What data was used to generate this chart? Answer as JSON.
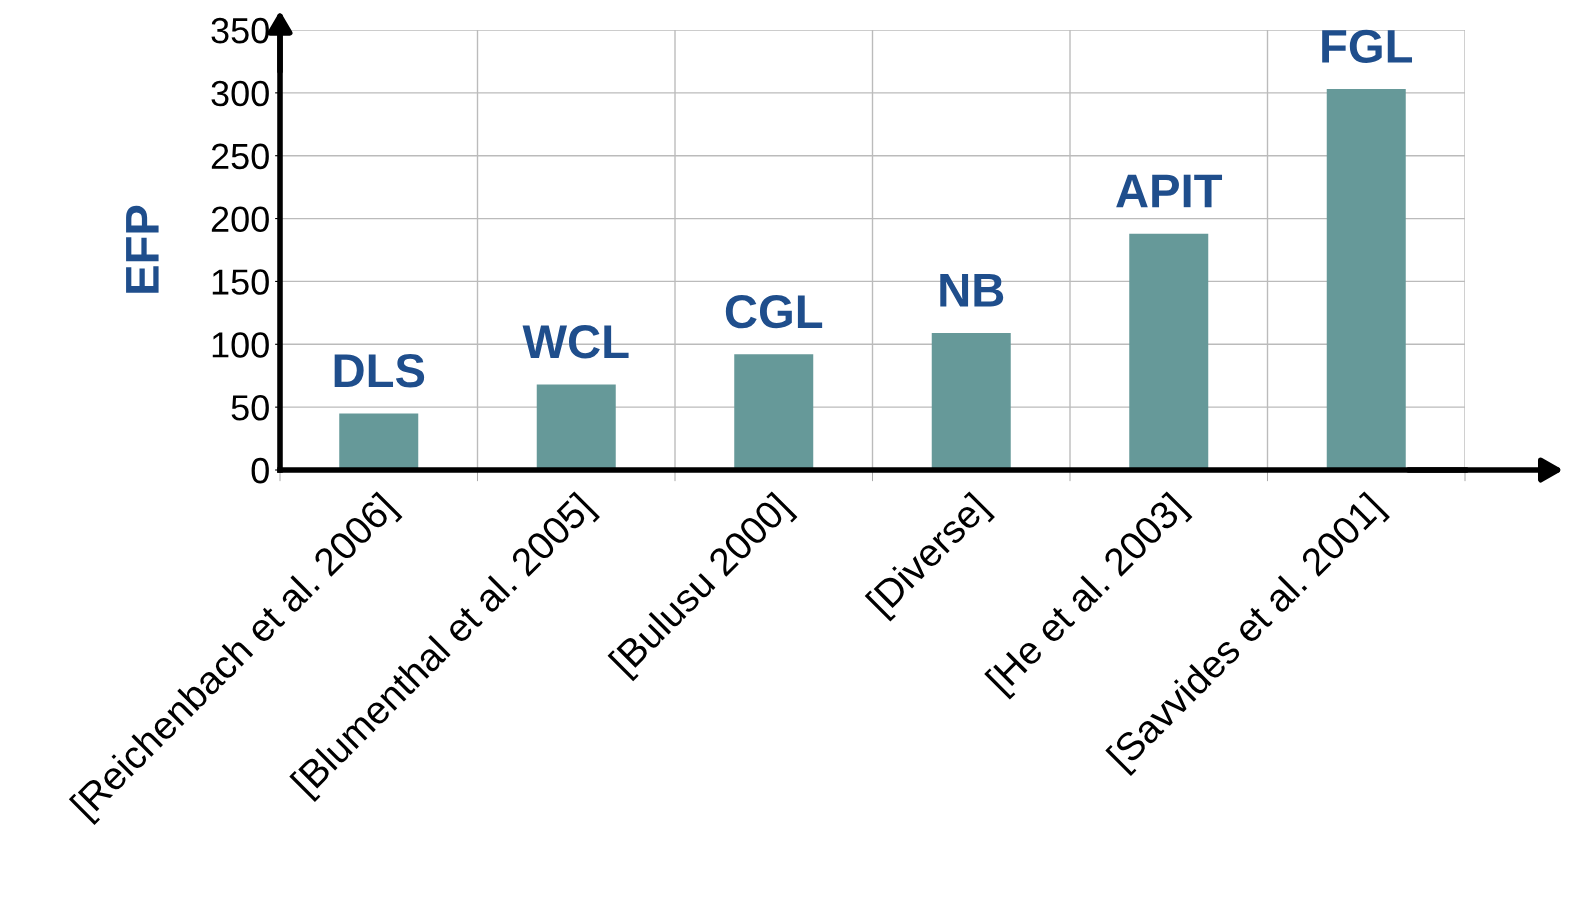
{
  "chart_data": {
    "type": "bar",
    "ylabel": "EFP",
    "categories": [
      "[Reichenbach et al. 2006]",
      "[Blumenthal et al. 2005]",
      "[Bulusu 2000]",
      "[Diverse]",
      "[He et al. 2003]",
      "[Savvides et al. 2001]"
    ],
    "values": [
      45,
      68,
      92,
      109,
      188,
      303
    ],
    "color": "#669999",
    "ylim": [
      0,
      350
    ],
    "yticks": [
      0,
      50,
      100,
      150,
      200,
      250,
      300,
      350
    ],
    "grid": true,
    "annotations": [
      {
        "text": "DLS",
        "x": "[Reichenbach et al. 2006]",
        "y": 45
      },
      {
        "text": "WCL",
        "x": "[Blumenthal et al. 2005]",
        "y": 68
      },
      {
        "text": "CGL",
        "x": "[Bulusu 2000]",
        "y": 92
      },
      {
        "text": "NB",
        "x": "[Diverse]",
        "y": 109
      },
      {
        "text": "APIT",
        "x": "[He et al. 2003]",
        "y": 188
      },
      {
        "text": "FGL",
        "x": "[Savvides et al. 2001]",
        "y": 303
      }
    ]
  }
}
